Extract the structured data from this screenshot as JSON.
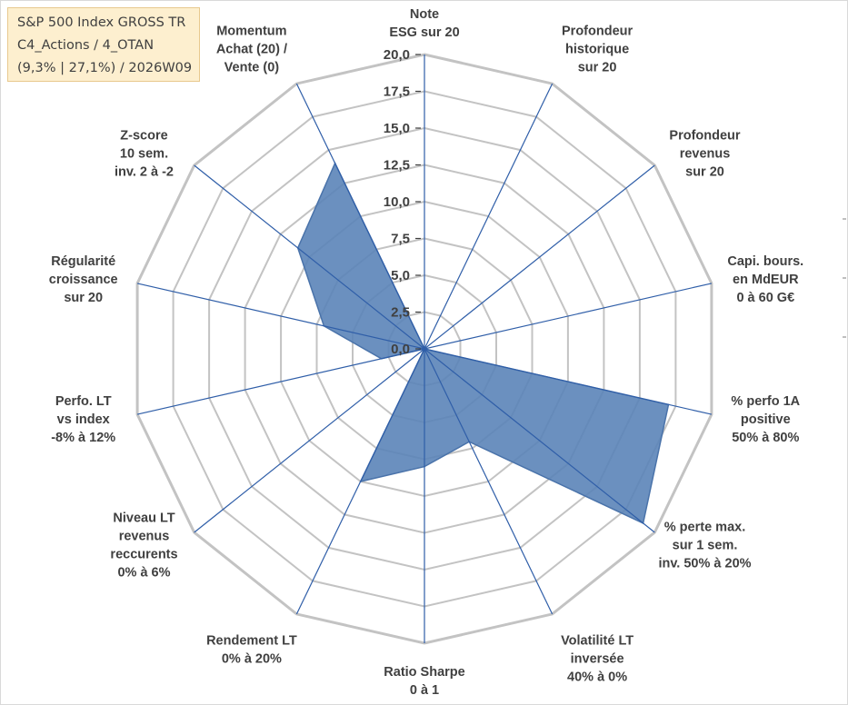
{
  "title": {
    "line1": "S&P 500 Index GROSS TR",
    "line2": "C4_Actions / 4_OTAN",
    "line3": "(9,3% | 27,1%) / 2026W09"
  },
  "colors": {
    "fill": "#5b84b8",
    "series_line": "#4a73aa",
    "grid": "#c3c3c3",
    "axes": "#2f5ea8",
    "text": "#404040",
    "title_bg": "#fdefcf"
  },
  "chart_data": {
    "type": "radar",
    "rmin": 0,
    "rmax": 20,
    "ticks": [
      "0,0",
      "2,5",
      "5,0",
      "7,5",
      "10,0",
      "12,5",
      "15,0",
      "17,5",
      "20,0"
    ],
    "grid": true,
    "axes": [
      [
        "Note",
        "ESG sur 20"
      ],
      [
        "Profondeur",
        "historique",
        "sur 20"
      ],
      [
        "Profondeur",
        "revenus",
        "sur 20"
      ],
      [
        "Capi. bours.",
        "en MdEUR",
        "0 à 60 G€"
      ],
      [
        "% perfo 1A",
        "positive",
        "50% à 80%"
      ],
      [
        "% perte max.",
        "sur 1 sem.",
        "inv. 50% à 20%"
      ],
      [
        "Volatilité LT",
        "inversée",
        "40% à 0%"
      ],
      [
        "Ratio Sharpe",
        "0 à 1"
      ],
      [
        "Rendement LT",
        "0% à 20%"
      ],
      [
        "Niveau LT",
        "revenus",
        "reccurents",
        "0% à 6%"
      ],
      [
        "Perfo. LT",
        "vs index",
        "-8% à 12%"
      ],
      [
        "Régularité",
        "croissance",
        "sur 20"
      ],
      [
        "Z-score",
        "10 sem.",
        "inv. 2 à -2"
      ],
      [
        "Momentum",
        "Achat (20) /",
        "Vente (0)"
      ]
    ],
    "series": [
      {
        "values": [
          0,
          0,
          0,
          0,
          17,
          19,
          7,
          8,
          10,
          0,
          3,
          7,
          11,
          14
        ]
      }
    ]
  }
}
